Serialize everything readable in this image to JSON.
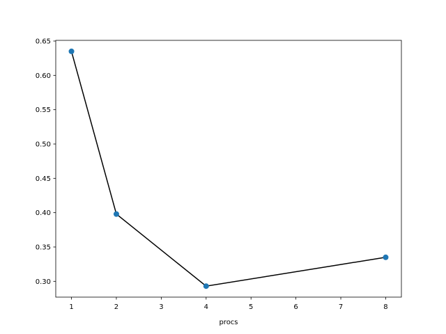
{
  "chart_data": {
    "type": "line",
    "title": "",
    "xlabel": "procs",
    "ylabel": "",
    "x": [
      1,
      2,
      4,
      8
    ],
    "series": [
      {
        "values": [
          0.635,
          0.398,
          0.293,
          0.335
        ]
      }
    ],
    "xlim": [
      0.65,
      8.35
    ],
    "ylim": [
      0.277,
      0.651
    ],
    "xticks": [
      1,
      2,
      3,
      4,
      5,
      6,
      7,
      8
    ],
    "xtick_labels": [
      "1",
      "2",
      "3",
      "4",
      "5",
      "6",
      "7",
      "8"
    ],
    "yticks": [
      0.3,
      0.35,
      0.4,
      0.45,
      0.5,
      0.55,
      0.6,
      0.65
    ],
    "ytick_labels": [
      "0.30",
      "0.35",
      "0.40",
      "0.45",
      "0.50",
      "0.55",
      "0.60",
      "0.65"
    ],
    "grid": false,
    "legend": "none",
    "colors": {
      "line": "#000000",
      "marker": "#1f77b4"
    }
  }
}
